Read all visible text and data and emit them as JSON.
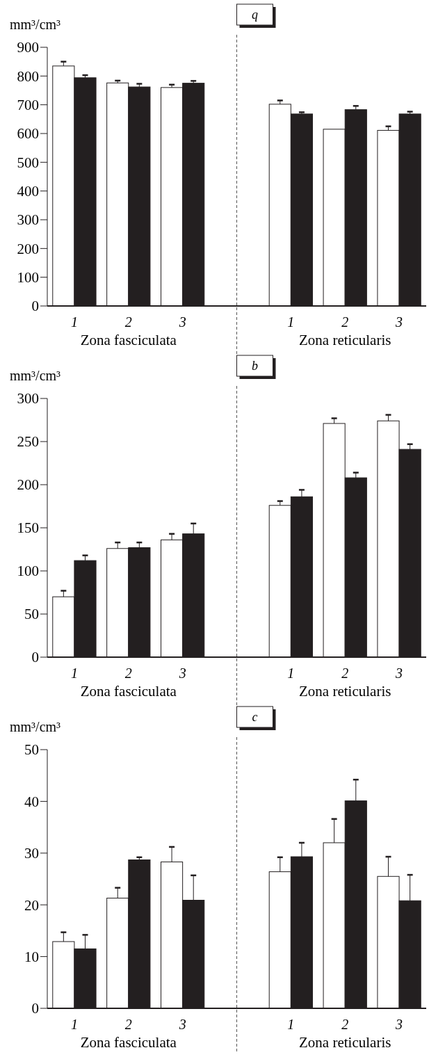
{
  "chart_data": [
    {
      "type": "bar",
      "title": "q",
      "ylabel": "mm³/cm³",
      "categories": [
        "1",
        "2",
        "3",
        null,
        "1",
        "2",
        "3"
      ],
      "ylim": [
        0,
        900
      ],
      "yticks": [
        0,
        100,
        200,
        300,
        400,
        500,
        600,
        700,
        800,
        900
      ],
      "annotations": [
        "Zona fasciculata",
        "Zona reticularis"
      ],
      "ref_lines": [
        {
          "axis": "x",
          "line_style": "dashed",
          "color": "#555555"
        }
      ],
      "series": [
        {
          "color": "#ffffff",
          "values": [
            835,
            776,
            760,
            null,
            702,
            615,
            611
          ],
          "errors": [
            [
              835,
              850
            ],
            [
              776,
              784
            ],
            [
              760,
              770
            ],
            null,
            [
              702,
              715
            ],
            null,
            [
              611,
              625
            ]
          ]
        },
        {
          "color": "#231f20",
          "values": [
            794,
            762,
            775,
            null,
            668,
            683,
            668
          ],
          "errors": [
            [
              794,
              803
            ],
            [
              762,
              773
            ],
            [
              775,
              783
            ],
            null,
            [
              668,
              674
            ],
            [
              683,
              696
            ],
            [
              668,
              676
            ]
          ]
        }
      ]
    },
    {
      "type": "bar",
      "title": "b",
      "ylabel": "mm³/cm³",
      "categories": [
        "1",
        "2",
        "3",
        null,
        "1",
        "2",
        "3"
      ],
      "ylim": [
        0,
        300
      ],
      "yticks": [
        0,
        50,
        100,
        150,
        200,
        250,
        300
      ],
      "annotations": [
        "Zona fasciculata",
        "Zona reticularis"
      ],
      "ref_lines": [
        {
          "axis": "x",
          "line_style": "dashed",
          "color": "#555555"
        }
      ],
      "series": [
        {
          "color": "#ffffff",
          "values": [
            70,
            126,
            136,
            null,
            176,
            271,
            274
          ],
          "errors": [
            [
              70,
              77
            ],
            [
              126,
              133
            ],
            [
              136,
              143
            ],
            null,
            [
              176,
              181
            ],
            [
              271,
              277
            ],
            [
              274,
              281
            ]
          ]
        },
        {
          "color": "#231f20",
          "values": [
            112,
            127,
            143,
            null,
            186,
            208,
            241
          ],
          "errors": [
            [
              112,
              118
            ],
            [
              127,
              133
            ],
            [
              143,
              155
            ],
            null,
            [
              186,
              194
            ],
            [
              208,
              214
            ],
            [
              241,
              247
            ]
          ]
        }
      ]
    },
    {
      "type": "bar",
      "title": "c",
      "ylabel": "mm³/cm³",
      "categories": [
        "1",
        "2",
        "3",
        null,
        "1",
        "2",
        "3"
      ],
      "ylim": [
        0,
        50
      ],
      "yticks": [
        0,
        10,
        20,
        30,
        40,
        50
      ],
      "annotations": [
        "Zona fasciculata",
        "Zona reticularis"
      ],
      "ref_lines": [
        {
          "axis": "x",
          "line_style": "dashed",
          "color": "#555555"
        }
      ],
      "series": [
        {
          "color": "#ffffff",
          "values": [
            12.9,
            21.3,
            28.3,
            null,
            26.4,
            32.0,
            25.5
          ],
          "errors": [
            [
              12.9,
              14.7
            ],
            [
              21.3,
              23.3
            ],
            [
              28.3,
              31.2
            ],
            null,
            [
              26.4,
              29.2
            ],
            [
              32.0,
              36.6
            ],
            [
              25.5,
              29.3
            ]
          ]
        },
        {
          "color": "#231f20",
          "values": [
            11.5,
            28.7,
            20.9,
            null,
            29.3,
            40.1,
            20.8
          ],
          "errors": [
            [
              11.5,
              14.2
            ],
            [
              28.7,
              29.2
            ],
            [
              20.9,
              25.7
            ],
            null,
            [
              29.3,
              32.0
            ],
            [
              40.1,
              44.2
            ],
            [
              20.8,
              25.8
            ]
          ]
        }
      ]
    }
  ]
}
